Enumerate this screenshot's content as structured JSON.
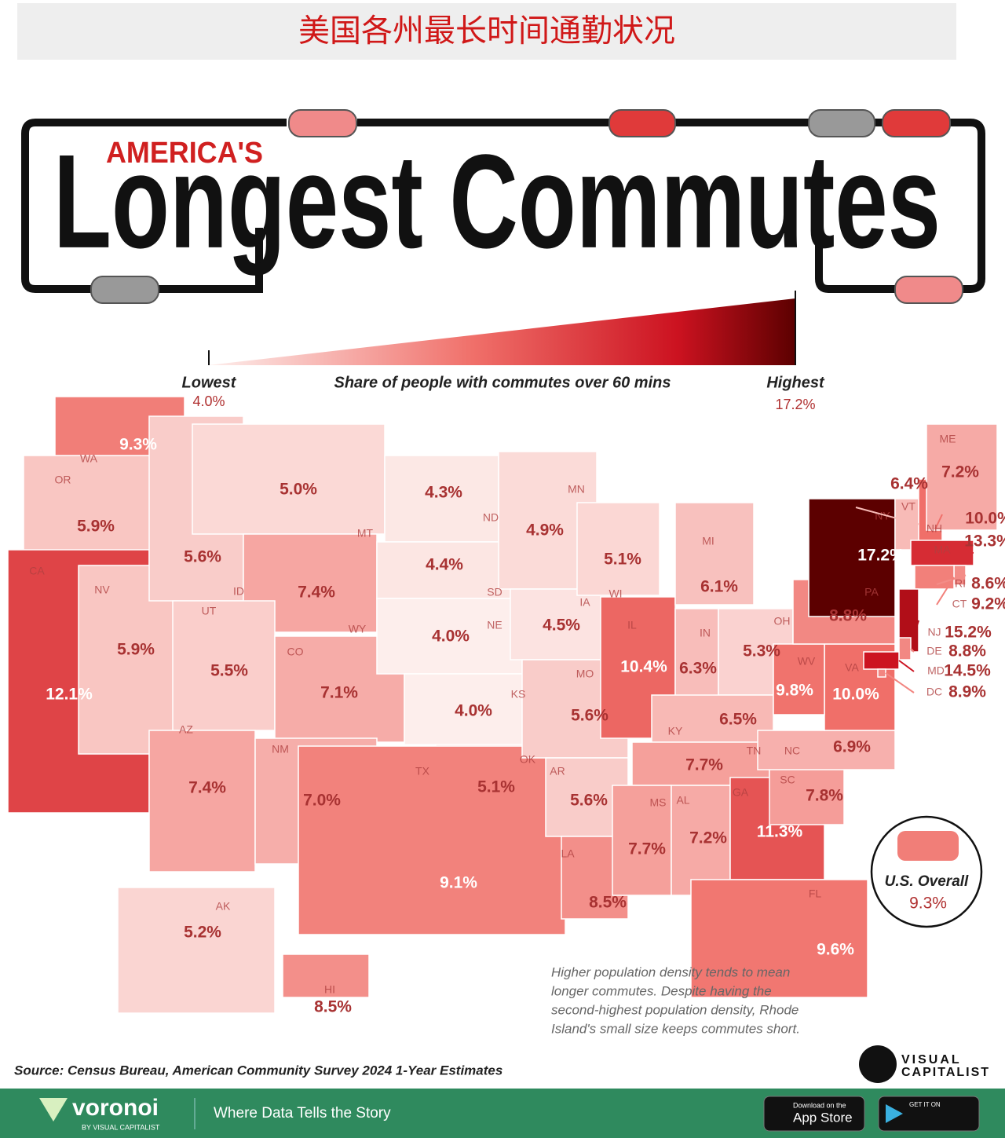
{
  "header": {
    "banner": "美国各州最长时间通勤状况",
    "kicker": "AMERICA'S",
    "title": "Longest Commutes"
  },
  "legend": {
    "caption": "Share of people with commutes over 60 mins",
    "low": {
      "name": "Lowest",
      "value": 4.0,
      "label": "4.0%"
    },
    "high": {
      "name": "Highest",
      "value": 17.2,
      "label": "17.2%"
    }
  },
  "states": [
    {
      "abbr": "WA",
      "value": 9.3,
      "label": "9.3%"
    },
    {
      "abbr": "OR",
      "value": 5.9,
      "label": "5.9%"
    },
    {
      "abbr": "CA",
      "value": 12.1,
      "label": "12.1%"
    },
    {
      "abbr": "NV",
      "value": 5.9,
      "label": "5.9%"
    },
    {
      "abbr": "ID",
      "value": 5.6,
      "label": "5.6%"
    },
    {
      "abbr": "MT",
      "value": 5.0,
      "label": "5.0%"
    },
    {
      "abbr": "WY",
      "value": 7.4,
      "label": "7.4%"
    },
    {
      "abbr": "UT",
      "value": 5.5,
      "label": "5.5%"
    },
    {
      "abbr": "CO",
      "value": 7.1,
      "label": "7.1%"
    },
    {
      "abbr": "AZ",
      "value": 7.4,
      "label": "7.4%"
    },
    {
      "abbr": "NM",
      "value": 7.0,
      "label": "7.0%"
    },
    {
      "abbr": "ND",
      "value": 4.3,
      "label": "4.3%"
    },
    {
      "abbr": "SD",
      "value": 4.4,
      "label": "4.4%"
    },
    {
      "abbr": "NE",
      "value": 4.0,
      "label": "4.0%"
    },
    {
      "abbr": "KS",
      "value": 4.0,
      "label": "4.0%"
    },
    {
      "abbr": "OK",
      "value": 5.1,
      "label": "5.1%"
    },
    {
      "abbr": "TX",
      "value": 9.1,
      "label": "9.1%"
    },
    {
      "abbr": "MN",
      "value": 4.9,
      "label": "4.9%"
    },
    {
      "abbr": "IA",
      "value": 4.5,
      "label": "4.5%"
    },
    {
      "abbr": "MO",
      "value": 5.6,
      "label": "5.6%"
    },
    {
      "abbr": "AR",
      "value": 5.6,
      "label": "5.6%"
    },
    {
      "abbr": "LA",
      "value": 8.5,
      "label": "8.5%"
    },
    {
      "abbr": "WI",
      "value": 5.1,
      "label": "5.1%"
    },
    {
      "abbr": "IL",
      "value": 10.4,
      "label": "10.4%"
    },
    {
      "abbr": "MI",
      "value": 6.1,
      "label": "6.1%"
    },
    {
      "abbr": "IN",
      "value": 6.3,
      "label": "6.3%"
    },
    {
      "abbr": "OH",
      "value": 5.3,
      "label": "5.3%"
    },
    {
      "abbr": "KY",
      "value": 6.5,
      "label": "6.5%"
    },
    {
      "abbr": "TN",
      "value": 7.7,
      "label": "7.7%"
    },
    {
      "abbr": "MS",
      "value": 7.7,
      "label": "7.7%"
    },
    {
      "abbr": "AL",
      "value": 7.2,
      "label": "7.2%"
    },
    {
      "abbr": "GA",
      "value": 11.3,
      "label": "11.3%"
    },
    {
      "abbr": "FL",
      "value": 9.6,
      "label": "9.6%"
    },
    {
      "abbr": "SC",
      "value": 7.8,
      "label": "7.8%"
    },
    {
      "abbr": "NC",
      "value": 6.9,
      "label": "6.9%"
    },
    {
      "abbr": "VA",
      "value": 10.0,
      "label": "10.0%"
    },
    {
      "abbr": "WV",
      "value": 9.8,
      "label": "9.8%"
    },
    {
      "abbr": "PA",
      "value": 8.8,
      "label": "8.8%"
    },
    {
      "abbr": "NY",
      "value": 17.2,
      "label": "17.2%"
    },
    {
      "abbr": "VT",
      "value": 6.4,
      "label": "6.4%"
    },
    {
      "abbr": "NH",
      "value": 10.0,
      "label": "10.0%"
    },
    {
      "abbr": "ME",
      "value": 7.2,
      "label": "7.2%"
    },
    {
      "abbr": "MA",
      "value": 13.3,
      "label": "13.3%"
    },
    {
      "abbr": "RI",
      "value": 8.6,
      "label": "8.6%"
    },
    {
      "abbr": "CT",
      "value": 9.2,
      "label": "9.2%"
    },
    {
      "abbr": "NJ",
      "value": 15.2,
      "label": "15.2%"
    },
    {
      "abbr": "DE",
      "value": 8.8,
      "label": "8.8%"
    },
    {
      "abbr": "MD",
      "value": 14.5,
      "label": "14.5%"
    },
    {
      "abbr": "DC",
      "value": 8.9,
      "label": "8.9%"
    },
    {
      "abbr": "AK",
      "value": 5.2,
      "label": "5.2%"
    },
    {
      "abbr": "HI",
      "value": 8.5,
      "label": "8.5%"
    }
  ],
  "overall": {
    "name": "U.S. Overall",
    "value": 9.3,
    "label": "9.3%"
  },
  "note": [
    "Higher population density tends to mean",
    "longer commutes. Despite having the",
    "second-highest population density, Rhode",
    "Island's small size keeps commutes short."
  ],
  "source": "Source: Census Bureau, American Community Survey 2024 1-Year Estimates",
  "brand": {
    "logo": [
      "VISUAL",
      "CAPITALIST"
    ]
  },
  "footer": {
    "name": "voronoi",
    "by": "BY VISUAL CAPITALIST",
    "tagline": "Where Data Tells the Story",
    "app_store": [
      "Download on the",
      "App Store"
    ],
    "google_play": "GET IT ON"
  }
}
